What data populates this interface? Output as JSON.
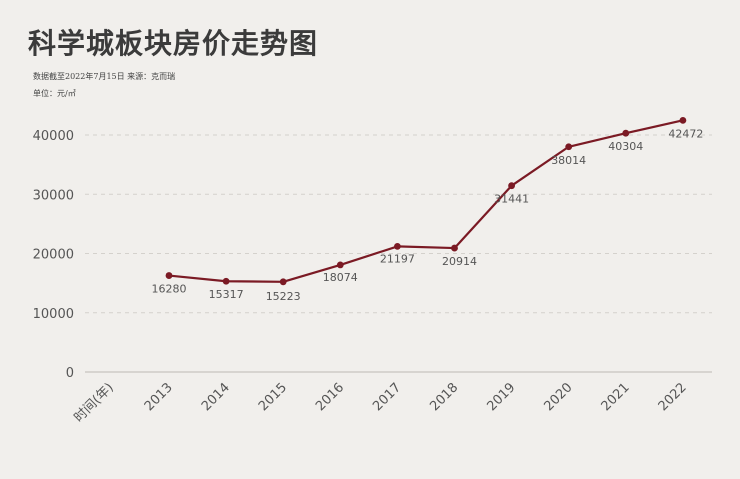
{
  "title": "科学城板块房价走势图",
  "source_note": "数据截至2022年7月15日  来源：克而瑞",
  "unit_note": "单位：元/㎡",
  "colors": {
    "line": "#7b1a24",
    "background": "#f1efec",
    "grid": "#d4d1cc"
  },
  "chart_data": {
    "type": "line",
    "title": "科学城板块房价走势图",
    "xlabel": "时间(年)",
    "ylabel": "",
    "categories": [
      "2013",
      "2014",
      "2015",
      "2016",
      "2017",
      "2018",
      "2019",
      "2020",
      "2021",
      "2022"
    ],
    "values": [
      16280,
      15317,
      15223,
      18074,
      21197,
      20914,
      31441,
      38014,
      40304,
      42472
    ],
    "data_labels": [
      "16280",
      "15317",
      "15223",
      "18074",
      "21197",
      "20914",
      "31441",
      "38014",
      "40304",
      "42472"
    ],
    "ylim": [
      0,
      43000
    ],
    "yticks": [
      0,
      10000,
      20000,
      30000,
      40000
    ],
    "grid": true,
    "legend": "none"
  }
}
